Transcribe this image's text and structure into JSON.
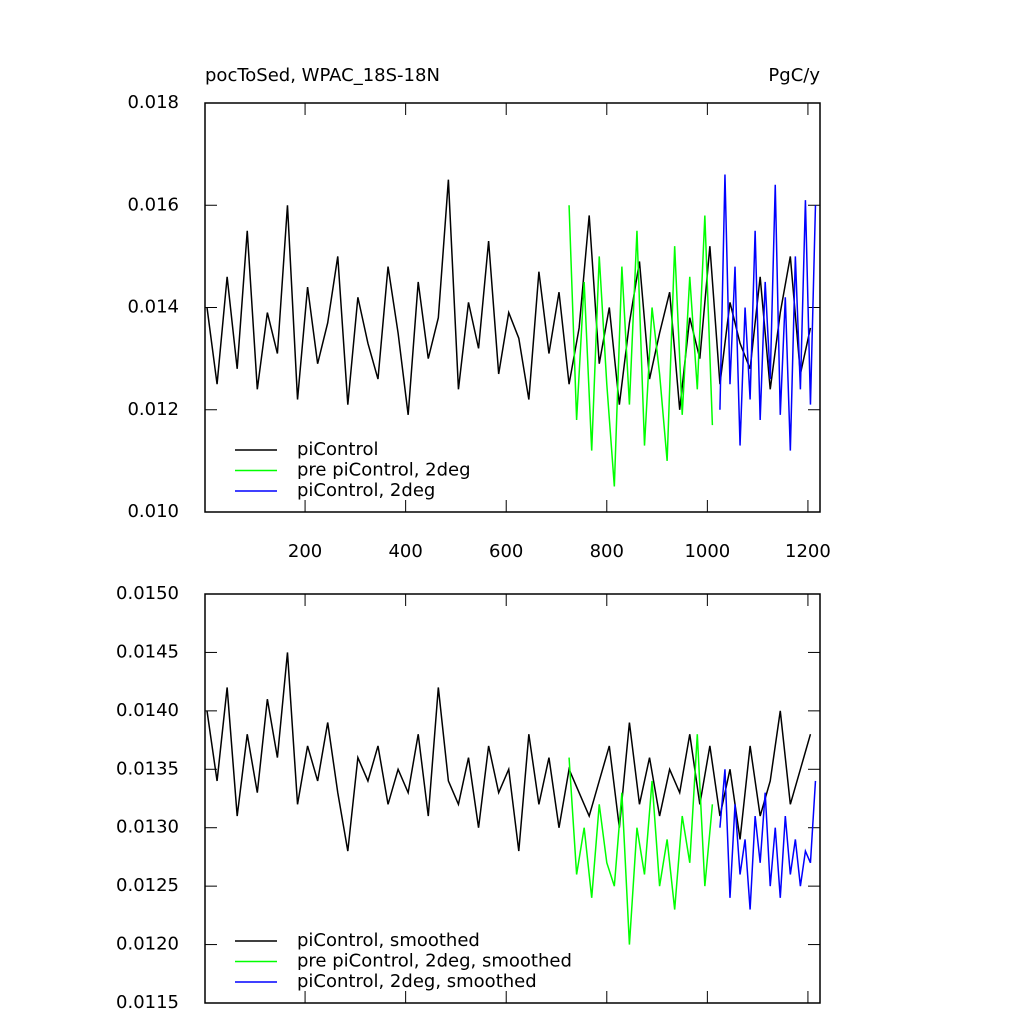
{
  "chart_data": [
    {
      "type": "line",
      "title": "pocToSed, WPAC_18S-18N",
      "units": "PgC/y",
      "xlim": [
        1,
        1224
      ],
      "xticks": [
        200,
        400,
        600,
        800,
        1000,
        1200
      ],
      "show_xtick_labels": true,
      "ylim": [
        0.01,
        0.018
      ],
      "yticks": [
        {
          "value": 0.01,
          "label": "0.010"
        },
        0.012,
        0.014,
        0.016,
        0.018
      ],
      "legend": "bottom-left",
      "series": [
        {
          "name": "piControl",
          "color": "#000000",
          "x": [
            5,
            25,
            45,
            65,
            85,
            105,
            125,
            145,
            165,
            185,
            205,
            225,
            245,
            265,
            285,
            305,
            325,
            345,
            365,
            385,
            405,
            425,
            445,
            465,
            485,
            505,
            525,
            545,
            565,
            585,
            605,
            625,
            645,
            665,
            685,
            705,
            725,
            745,
            765,
            785,
            805,
            825,
            845,
            865,
            885,
            905,
            925,
            945,
            965,
            985,
            1005,
            1025,
            1045,
            1065,
            1085,
            1105,
            1125,
            1145,
            1165,
            1185,
            1205
          ],
          "values": [
            0.014,
            0.0125,
            0.0146,
            0.0128,
            0.0155,
            0.0124,
            0.0139,
            0.0131,
            0.016,
            0.0122,
            0.0144,
            0.0129,
            0.0137,
            0.015,
            0.0121,
            0.0142,
            0.0133,
            0.0126,
            0.0148,
            0.0135,
            0.0119,
            0.0145,
            0.013,
            0.0138,
            0.0165,
            0.0124,
            0.0141,
            0.0132,
            0.0153,
            0.0127,
            0.0139,
            0.0134,
            0.0122,
            0.0147,
            0.0131,
            0.0143,
            0.0125,
            0.0136,
            0.0158,
            0.0129,
            0.014,
            0.0121,
            0.0137,
            0.0149,
            0.0126,
            0.0135,
            0.0143,
            0.012,
            0.0138,
            0.013,
            0.0152,
            0.0125,
            0.0141,
            0.0133,
            0.0128,
            0.0146,
            0.0124,
            0.0139,
            0.015,
            0.0127,
            0.0136
          ]
        },
        {
          "name": "pre piControl, 2deg",
          "color": "#00ff00",
          "x": [
            725,
            740,
            755,
            770,
            785,
            800,
            815,
            830,
            845,
            860,
            875,
            890,
            905,
            920,
            935,
            950,
            965,
            980,
            995,
            1010
          ],
          "values": [
            0.016,
            0.0118,
            0.0145,
            0.0112,
            0.015,
            0.0125,
            0.0105,
            0.0148,
            0.0121,
            0.0155,
            0.0113,
            0.014,
            0.0127,
            0.011,
            0.0152,
            0.0119,
            0.0146,
            0.0124,
            0.0158,
            0.0117
          ]
        },
        {
          "name": "piControl, 2deg",
          "color": "#0000ff",
          "x": [
            1025,
            1035,
            1045,
            1055,
            1065,
            1075,
            1085,
            1095,
            1105,
            1115,
            1125,
            1135,
            1145,
            1155,
            1165,
            1175,
            1185,
            1195,
            1205,
            1215
          ],
          "values": [
            0.012,
            0.0166,
            0.0125,
            0.0148,
            0.0113,
            0.014,
            0.0122,
            0.0155,
            0.0118,
            0.0145,
            0.0126,
            0.0164,
            0.0119,
            0.0142,
            0.0112,
            0.015,
            0.0124,
            0.0161,
            0.0121,
            0.016
          ]
        }
      ]
    },
    {
      "type": "line",
      "xlim": [
        1,
        1224
      ],
      "xticks": [
        200,
        400,
        600,
        800,
        1000,
        1200
      ],
      "show_xtick_labels": false,
      "ylim": [
        0.0115,
        0.015
      ],
      "yticks": [
        {
          "value": 0.0115,
          "label": "0.0115"
        },
        {
          "value": 0.012,
          "label": "0.0120"
        },
        0.0125,
        {
          "value": 0.013,
          "label": "0.0130"
        },
        0.0135,
        {
          "value": 0.014,
          "label": "0.0140"
        },
        0.0145,
        {
          "value": 0.015,
          "label": "0.0150"
        }
      ],
      "legend": "bottom-left",
      "series": [
        {
          "name": "piControl, smoothed",
          "color": "#000000",
          "x": [
            5,
            25,
            45,
            65,
            85,
            105,
            125,
            145,
            165,
            185,
            205,
            225,
            245,
            265,
            285,
            305,
            325,
            345,
            365,
            385,
            405,
            425,
            445,
            465,
            485,
            505,
            525,
            545,
            565,
            585,
            605,
            625,
            645,
            665,
            685,
            705,
            725,
            745,
            765,
            785,
            805,
            825,
            845,
            865,
            885,
            905,
            925,
            945,
            965,
            985,
            1005,
            1025,
            1045,
            1065,
            1085,
            1105,
            1125,
            1145,
            1165,
            1185,
            1205
          ],
          "values": [
            0.014,
            0.0134,
            0.0142,
            0.0131,
            0.0138,
            0.0133,
            0.0141,
            0.0136,
            0.0145,
            0.0132,
            0.0137,
            0.0134,
            0.0139,
            0.0133,
            0.0128,
            0.0136,
            0.0134,
            0.0137,
            0.0132,
            0.0135,
            0.0133,
            0.0138,
            0.0131,
            0.0142,
            0.0134,
            0.0132,
            0.0136,
            0.013,
            0.0137,
            0.0133,
            0.0135,
            0.0128,
            0.0138,
            0.0132,
            0.0136,
            0.013,
            0.0135,
            0.0133,
            0.0131,
            0.0134,
            0.0137,
            0.013,
            0.0139,
            0.0132,
            0.0136,
            0.0131,
            0.0135,
            0.0133,
            0.0138,
            0.0132,
            0.0137,
            0.0131,
            0.0135,
            0.0129,
            0.0137,
            0.0131,
            0.0134,
            0.014,
            0.0132,
            0.0135,
            0.0138
          ]
        },
        {
          "name": "pre piControl, 2deg, smoothed",
          "color": "#00ff00",
          "x": [
            725,
            740,
            755,
            770,
            785,
            800,
            815,
            830,
            845,
            860,
            875,
            890,
            905,
            920,
            935,
            950,
            965,
            980,
            995,
            1010
          ],
          "values": [
            0.0136,
            0.0126,
            0.013,
            0.0124,
            0.0132,
            0.0127,
            0.0125,
            0.0133,
            0.012,
            0.013,
            0.0126,
            0.0134,
            0.0125,
            0.0129,
            0.0123,
            0.0131,
            0.0127,
            0.0138,
            0.0125,
            0.0132
          ]
        },
        {
          "name": "piControl, 2deg, smoothed",
          "color": "#0000ff",
          "x": [
            1025,
            1035,
            1045,
            1055,
            1065,
            1075,
            1085,
            1095,
            1105,
            1115,
            1125,
            1135,
            1145,
            1155,
            1165,
            1175,
            1185,
            1195,
            1205,
            1215
          ],
          "values": [
            0.013,
            0.0135,
            0.0124,
            0.0132,
            0.0126,
            0.0129,
            0.0123,
            0.0131,
            0.0127,
            0.0133,
            0.0125,
            0.013,
            0.0124,
            0.0131,
            0.0126,
            0.0129,
            0.0125,
            0.0128,
            0.0127,
            0.0134
          ]
        }
      ]
    }
  ]
}
